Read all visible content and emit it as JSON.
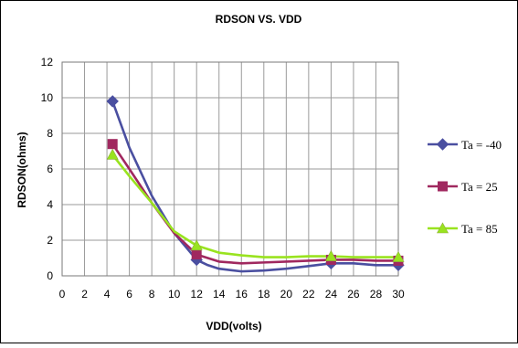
{
  "chart_data": {
    "type": "line",
    "title": "RDSON VS. VDD",
    "xlabel": "VDD(volts)",
    "ylabel": "RDSON(ohms)",
    "xlim": [
      0,
      30
    ],
    "ylim": [
      0,
      12
    ],
    "x_ticks": [
      0,
      2,
      4,
      6,
      8,
      10,
      12,
      14,
      16,
      18,
      20,
      22,
      24,
      26,
      28,
      30
    ],
    "y_ticks": [
      0,
      2,
      4,
      6,
      8,
      10,
      12
    ],
    "grid": true,
    "legend_position": "right",
    "series": [
      {
        "name": "Ta = -40",
        "color": "#4A4FA0",
        "marker": "diamond",
        "marker_x": [
          4.5,
          12,
          24,
          30
        ],
        "x": [
          4.5,
          6,
          8,
          10,
          12,
          13,
          14,
          16,
          18,
          20,
          22,
          24,
          26,
          28,
          30
        ],
        "values": [
          9.8,
          7.2,
          4.5,
          2.4,
          0.9,
          0.6,
          0.4,
          0.25,
          0.3,
          0.4,
          0.55,
          0.7,
          0.7,
          0.6,
          0.6
        ]
      },
      {
        "name": "Ta = 25",
        "color": "#A0285F",
        "marker": "square",
        "marker_x": [
          4.5,
          12,
          24,
          30
        ],
        "x": [
          4.5,
          6,
          8,
          10,
          12,
          14,
          16,
          18,
          20,
          22,
          24,
          26,
          28,
          30
        ],
        "values": [
          7.4,
          6.0,
          4.1,
          2.4,
          1.2,
          0.8,
          0.7,
          0.75,
          0.8,
          0.85,
          0.9,
          0.9,
          0.85,
          0.85
        ]
      },
      {
        "name": "Ta = 85",
        "color": "#99E31F",
        "marker": "triangle",
        "marker_x": [
          4.5,
          12,
          24,
          30
        ],
        "x": [
          4.5,
          6,
          8,
          10,
          12,
          14,
          16,
          18,
          20,
          22,
          24,
          26,
          28,
          30
        ],
        "values": [
          6.8,
          5.6,
          4.1,
          2.5,
          1.7,
          1.3,
          1.15,
          1.05,
          1.05,
          1.1,
          1.1,
          1.05,
          1.05,
          1.05
        ]
      }
    ]
  }
}
